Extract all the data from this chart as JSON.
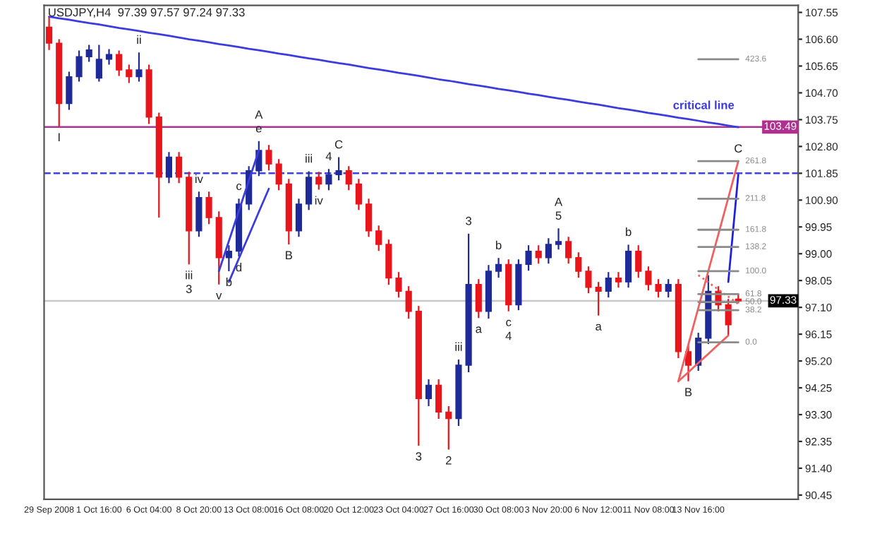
{
  "chart_data": {
    "type": "candlestick",
    "title": "USDJPY,H4  97.39 97.57 97.24 97.33",
    "categories": [
      "29 Sep 2008",
      null,
      null,
      null,
      null,
      "1 Oct 16:00",
      null,
      null,
      null,
      null,
      "6 Oct 04:00",
      null,
      null,
      null,
      null,
      "8 Oct 20:00",
      null,
      null,
      null,
      null,
      "13 Oct 08:00",
      null,
      null,
      null,
      null,
      "16 Oct 08:00",
      null,
      null,
      null,
      null,
      "20 Oct 12:00",
      null,
      null,
      null,
      null,
      "23 Oct 04:00",
      null,
      null,
      null,
      null,
      "27 Oct 16:00",
      null,
      null,
      null,
      null,
      "30 Oct 08:00",
      null,
      null,
      null,
      null,
      "3 Nov 20:00",
      null,
      null,
      null,
      null,
      "6 Nov 12:00",
      null,
      null,
      null,
      null,
      "11 Nov 08:00",
      null,
      null,
      null,
      null,
      "13 Nov 16:00",
      null,
      null,
      null,
      null
    ],
    "ohlc": [
      [
        107.03,
        107.41,
        106.22,
        106.46
      ],
      [
        106.46,
        106.6,
        103.51,
        104.32
      ],
      [
        104.32,
        105.45,
        104.1,
        105.27
      ],
      [
        105.27,
        106.2,
        105.1,
        105.98
      ],
      [
        105.98,
        106.4,
        105.8,
        106.22
      ],
      [
        105.22,
        106.4,
        105.1,
        105.89
      ],
      [
        105.89,
        106.25,
        105.7,
        106.06
      ],
      [
        106.06,
        106.2,
        105.3,
        105.51
      ],
      [
        105.51,
        105.7,
        105.05,
        105.27
      ],
      [
        105.27,
        106.13,
        105.1,
        105.51
      ],
      [
        105.51,
        105.7,
        103.6,
        103.84
      ],
      [
        103.84,
        104.0,
        100.28,
        101.71
      ],
      [
        101.71,
        102.6,
        101.5,
        102.42
      ],
      [
        102.42,
        102.6,
        101.5,
        101.71
      ],
      [
        101.71,
        101.9,
        98.62,
        99.81
      ],
      [
        99.81,
        101.2,
        99.6,
        100.99
      ],
      [
        100.99,
        101.2,
        100.05,
        100.28
      ],
      [
        100.28,
        100.5,
        97.91,
        98.86
      ],
      [
        98.86,
        99.3,
        98.38,
        99.09
      ],
      [
        99.09,
        100.95,
        98.9,
        100.76
      ],
      [
        100.76,
        102.1,
        100.55,
        101.94
      ],
      [
        101.94,
        102.99,
        101.75,
        102.66
      ],
      [
        102.66,
        102.85,
        101.95,
        102.18
      ],
      [
        102.18,
        102.35,
        101.25,
        101.47
      ],
      [
        101.47,
        101.65,
        99.33,
        99.81
      ],
      [
        99.81,
        100.95,
        99.6,
        100.76
      ],
      [
        100.76,
        101.92,
        100.55,
        101.71
      ],
      [
        101.71,
        101.9,
        101.27,
        101.47
      ],
      [
        101.47,
        102.0,
        101.25,
        101.8
      ],
      [
        101.8,
        102.42,
        101.6,
        101.94
      ],
      [
        101.94,
        102.1,
        101.25,
        101.47
      ],
      [
        101.47,
        101.65,
        100.55,
        100.76
      ],
      [
        100.76,
        100.95,
        99.6,
        99.81
      ],
      [
        99.81,
        100.0,
        99.1,
        99.33
      ],
      [
        99.33,
        99.5,
        97.9,
        98.14
      ],
      [
        98.14,
        98.35,
        97.45,
        97.67
      ],
      [
        97.67,
        97.85,
        96.7,
        96.96
      ],
      [
        96.96,
        97.15,
        92.2,
        93.87
      ],
      [
        93.87,
        94.55,
        93.6,
        94.34
      ],
      [
        94.34,
        94.55,
        93.15,
        93.39
      ],
      [
        93.39,
        93.6,
        92.06,
        93.16
      ],
      [
        93.16,
        95.25,
        92.9,
        95.05
      ],
      [
        95.05,
        99.71,
        94.8,
        97.91
      ],
      [
        97.91,
        98.1,
        96.72,
        96.96
      ],
      [
        96.96,
        98.6,
        96.7,
        98.38
      ],
      [
        98.38,
        98.85,
        98.15,
        98.62
      ],
      [
        98.62,
        98.8,
        96.96,
        97.19
      ],
      [
        97.19,
        98.8,
        97.0,
        98.62
      ],
      [
        98.62,
        99.3,
        98.4,
        99.09
      ],
      [
        99.09,
        99.3,
        98.65,
        98.86
      ],
      [
        98.86,
        99.55,
        98.65,
        99.33
      ],
      [
        99.33,
        99.9,
        99.15,
        99.43
      ],
      [
        99.43,
        99.6,
        98.65,
        98.86
      ],
      [
        98.86,
        99.05,
        98.15,
        98.38
      ],
      [
        98.38,
        98.55,
        97.6,
        97.81
      ],
      [
        97.81,
        98.0,
        96.81,
        97.67
      ],
      [
        97.67,
        98.35,
        97.45,
        98.14
      ],
      [
        98.14,
        98.35,
        97.8,
        98.0
      ],
      [
        98.0,
        99.32,
        97.8,
        99.09
      ],
      [
        99.09,
        99.3,
        98.15,
        98.38
      ],
      [
        98.38,
        98.55,
        97.7,
        97.91
      ],
      [
        97.91,
        98.1,
        97.45,
        97.67
      ],
      [
        97.67,
        98.1,
        97.45,
        97.91
      ],
      [
        97.91,
        98.1,
        95.3,
        95.53
      ],
      [
        95.53,
        95.75,
        94.48,
        95.05
      ],
      [
        95.05,
        96.2,
        94.85,
        96.01
      ],
      [
        96.01,
        98.24,
        95.8,
        97.67
      ],
      [
        97.67,
        97.85,
        96.96,
        97.19
      ],
      [
        97.19,
        97.4,
        96.1,
        96.48
      ],
      [
        97.39,
        97.57,
        97.24,
        97.33
      ]
    ],
    "colors": [
      "#e8151b",
      "#e8151b",
      "#1f2a99",
      "#1f2a99",
      "#1f2a99",
      "#1f2a99",
      "#1f2a99",
      "#e8151b",
      "#e8151b",
      "#1f2a99",
      "#e8151b",
      "#e8151b",
      "#1f2a99",
      "#e8151b",
      "#e8151b",
      "#1f2a99",
      "#e8151b",
      "#e8151b",
      "#1f2a99",
      "#1f2a99",
      "#1f2a99",
      "#1f2a99",
      "#e8151b",
      "#e8151b",
      "#e8151b",
      "#1f2a99",
      "#1f2a99",
      "#e8151b",
      "#1f2a99",
      "#1f2a99",
      "#e8151b",
      "#e8151b",
      "#e8151b",
      "#e8151b",
      "#e8151b",
      "#e8151b",
      "#e8151b",
      "#e8151b",
      "#1f2a99",
      "#e8151b",
      "#e8151b",
      "#1f2a99",
      "#1f2a99",
      "#e8151b",
      "#1f2a99",
      "#1f2a99",
      "#e8151b",
      "#1f2a99",
      "#1f2a99",
      "#e8151b",
      "#1f2a99",
      "#1f2a99",
      "#e8151b",
      "#e8151b",
      "#e8151b",
      "#e8151b",
      "#1f2a99",
      "#e8151b",
      "#1f2a99",
      "#e8151b",
      "#e8151b",
      "#e8151b",
      "#1f2a99",
      "#e8151b",
      "#e8151b",
      "#1f2a99",
      "#1f2a99",
      "#e8151b",
      "#e8151b",
      "#e8151b"
    ],
    "series": [
      {
        "type": "line",
        "name": "critical line",
        "color": "#3c3cdc",
        "values": [
          107.4,
          107.34,
          107.29,
          107.23,
          107.17,
          107.12,
          107.06,
          107.0,
          106.95,
          106.89,
          106.83,
          106.78,
          106.72,
          106.66,
          106.6,
          106.55,
          106.49,
          106.43,
          106.38,
          106.32,
          106.26,
          106.21,
          106.15,
          106.09,
          106.04,
          105.98,
          105.92,
          105.87,
          105.81,
          105.75,
          105.7,
          105.64,
          105.58,
          105.53,
          105.47,
          105.41,
          105.36,
          105.3,
          105.24,
          105.18,
          105.13,
          105.07,
          105.01,
          104.96,
          104.9,
          104.84,
          104.79,
          104.73,
          104.67,
          104.62,
          104.56,
          104.5,
          104.45,
          104.39,
          104.33,
          104.28,
          104.22,
          104.16,
          104.11,
          104.05,
          103.99,
          103.94,
          103.88,
          103.82,
          103.77,
          103.71,
          103.65,
          103.6,
          103.54,
          103.48
        ]
      },
      {
        "type": "line",
        "color": "#3c3cdc",
        "values": [
          null,
          null,
          null,
          null,
          null,
          null,
          null,
          null,
          null,
          null,
          null,
          null,
          null,
          null,
          null,
          null,
          null,
          98.38,
          99.45,
          100.52,
          101.59,
          102.66,
          null,
          null,
          null,
          null,
          null,
          null,
          null,
          null,
          null,
          null,
          null,
          null,
          null,
          null,
          null,
          null,
          null,
          null,
          null,
          null,
          null,
          null,
          null,
          null,
          null,
          null,
          null,
          null,
          null,
          null,
          null,
          null,
          null,
          null,
          null,
          null,
          null,
          null,
          null,
          null,
          null,
          null,
          null,
          null,
          null,
          null,
          null,
          null
        ]
      },
      {
        "type": "line",
        "color": "#3c3cdc",
        "values": [
          null,
          null,
          null,
          null,
          null,
          null,
          null,
          null,
          null,
          null,
          null,
          null,
          null,
          null,
          null,
          null,
          null,
          null,
          98.0,
          98.83,
          99.65,
          100.48,
          101.3,
          null,
          null,
          null,
          null,
          null,
          null,
          null,
          null,
          null,
          null,
          null,
          null,
          null,
          null,
          null,
          null,
          null,
          null,
          null,
          null,
          null,
          null,
          null,
          null,
          null,
          null,
          null,
          null,
          null,
          null,
          null,
          null,
          null,
          null,
          null,
          null,
          null,
          null,
          null,
          null,
          null,
          null,
          null,
          null,
          null,
          null,
          null
        ]
      },
      {
        "type": "line",
        "color": "#f06060",
        "values": [
          null,
          null,
          null,
          null,
          null,
          null,
          null,
          null,
          null,
          null,
          null,
          null,
          null,
          null,
          null,
          null,
          null,
          null,
          null,
          null,
          null,
          null,
          null,
          null,
          null,
          null,
          null,
          null,
          null,
          null,
          null,
          null,
          null,
          null,
          null,
          null,
          null,
          null,
          null,
          null,
          null,
          null,
          null,
          null,
          null,
          null,
          null,
          null,
          null,
          null,
          null,
          null,
          null,
          null,
          null,
          null,
          null,
          null,
          null,
          null,
          null,
          null,
          null,
          94.48,
          95.78,
          97.08,
          98.38,
          99.68,
          100.98,
          102.28
        ]
      },
      {
        "type": "line",
        "color": "#f06060",
        "values": [
          null,
          null,
          null,
          null,
          null,
          null,
          null,
          null,
          null,
          null,
          null,
          null,
          null,
          null,
          null,
          null,
          null,
          null,
          null,
          null,
          null,
          null,
          null,
          null,
          null,
          null,
          null,
          null,
          null,
          null,
          null,
          null,
          null,
          null,
          null,
          null,
          null,
          null,
          null,
          null,
          null,
          null,
          null,
          null,
          null,
          null,
          null,
          null,
          null,
          null,
          null,
          null,
          null,
          null,
          null,
          null,
          null,
          null,
          null,
          null,
          null,
          null,
          null,
          94.48,
          94.8,
          95.13,
          95.45,
          95.78,
          96.1,
          null
        ]
      },
      {
        "type": "line",
        "color": "#f06060",
        "line_style": "dotted",
        "values": [
          null,
          null,
          null,
          null,
          null,
          null,
          null,
          null,
          null,
          null,
          null,
          null,
          null,
          null,
          null,
          null,
          null,
          null,
          null,
          null,
          null,
          null,
          null,
          null,
          null,
          null,
          null,
          null,
          null,
          null,
          null,
          null,
          null,
          null,
          null,
          null,
          null,
          null,
          null,
          null,
          null,
          null,
          null,
          null,
          null,
          null,
          null,
          null,
          null,
          null,
          null,
          null,
          null,
          null,
          null,
          null,
          null,
          null,
          null,
          null,
          null,
          null,
          null,
          null,
          null,
          98.24,
          97.99,
          97.73,
          97.48,
          97.22
        ]
      },
      {
        "type": "line",
        "color": "#2020e0",
        "values": [
          null,
          null,
          null,
          null,
          null,
          null,
          null,
          null,
          null,
          null,
          null,
          null,
          null,
          null,
          null,
          null,
          null,
          null,
          null,
          null,
          null,
          null,
          null,
          null,
          null,
          null,
          null,
          null,
          null,
          null,
          null,
          null,
          null,
          null,
          null,
          null,
          null,
          null,
          null,
          null,
          null,
          null,
          null,
          null,
          null,
          null,
          null,
          null,
          null,
          null,
          null,
          null,
          null,
          null,
          null,
          null,
          null,
          null,
          null,
          null,
          null,
          null,
          null,
          null,
          null,
          null,
          null,
          null,
          98.0,
          101.8
        ]
      },
      {
        "type": "line",
        "name": "423.6",
        "color": "#8a8a8a",
        "values": [
          null,
          null,
          null,
          null,
          null,
          null,
          null,
          null,
          null,
          null,
          null,
          null,
          null,
          null,
          null,
          null,
          null,
          null,
          null,
          null,
          null,
          null,
          null,
          null,
          null,
          null,
          null,
          null,
          null,
          null,
          null,
          null,
          null,
          null,
          null,
          null,
          null,
          null,
          null,
          null,
          null,
          null,
          null,
          null,
          null,
          null,
          null,
          null,
          null,
          null,
          null,
          null,
          null,
          null,
          null,
          null,
          null,
          null,
          null,
          null,
          null,
          null,
          null,
          null,
          null,
          105.89,
          105.89,
          105.89,
          105.89,
          105.89
        ]
      },
      {
        "type": "line",
        "name": "261.8",
        "color": "#8a8a8a",
        "values": [
          null,
          null,
          null,
          null,
          null,
          null,
          null,
          null,
          null,
          null,
          null,
          null,
          null,
          null,
          null,
          null,
          null,
          null,
          null,
          null,
          null,
          null,
          null,
          null,
          null,
          null,
          null,
          null,
          null,
          null,
          null,
          null,
          null,
          null,
          null,
          null,
          null,
          null,
          null,
          null,
          null,
          null,
          null,
          null,
          null,
          null,
          null,
          null,
          null,
          null,
          null,
          null,
          null,
          null,
          null,
          null,
          null,
          null,
          null,
          null,
          null,
          null,
          null,
          null,
          null,
          102.28,
          102.28,
          102.28,
          102.28,
          102.28
        ]
      },
      {
        "type": "line",
        "name": "211.8",
        "color": "#8a8a8a",
        "values": [
          null,
          null,
          null,
          null,
          null,
          null,
          null,
          null,
          null,
          null,
          null,
          null,
          null,
          null,
          null,
          null,
          null,
          null,
          null,
          null,
          null,
          null,
          null,
          null,
          null,
          null,
          null,
          null,
          null,
          null,
          null,
          null,
          null,
          null,
          null,
          null,
          null,
          null,
          null,
          null,
          null,
          null,
          null,
          null,
          null,
          null,
          null,
          null,
          null,
          null,
          null,
          null,
          null,
          null,
          null,
          null,
          null,
          null,
          null,
          null,
          null,
          null,
          null,
          null,
          null,
          100.95,
          100.95,
          100.95,
          100.95,
          100.95
        ]
      },
      {
        "type": "line",
        "name": "161.8",
        "color": "#8a8a8a",
        "values": [
          null,
          null,
          null,
          null,
          null,
          null,
          null,
          null,
          null,
          null,
          null,
          null,
          null,
          null,
          null,
          null,
          null,
          null,
          null,
          null,
          null,
          null,
          null,
          null,
          null,
          null,
          null,
          null,
          null,
          null,
          null,
          null,
          null,
          null,
          null,
          null,
          null,
          null,
          null,
          null,
          null,
          null,
          null,
          null,
          null,
          null,
          null,
          null,
          null,
          null,
          null,
          null,
          null,
          null,
          null,
          null,
          null,
          null,
          null,
          null,
          null,
          null,
          null,
          null,
          null,
          99.85,
          99.85,
          99.85,
          99.85,
          99.85
        ]
      },
      {
        "type": "line",
        "name": "138.2",
        "color": "#8a8a8a",
        "values": [
          null,
          null,
          null,
          null,
          null,
          null,
          null,
          null,
          null,
          null,
          null,
          null,
          null,
          null,
          null,
          null,
          null,
          null,
          null,
          null,
          null,
          null,
          null,
          null,
          null,
          null,
          null,
          null,
          null,
          null,
          null,
          null,
          null,
          null,
          null,
          null,
          null,
          null,
          null,
          null,
          null,
          null,
          null,
          null,
          null,
          null,
          null,
          null,
          null,
          null,
          null,
          null,
          null,
          null,
          null,
          null,
          null,
          null,
          null,
          null,
          null,
          null,
          null,
          null,
          null,
          99.24,
          99.24,
          99.24,
          99.24,
          99.24
        ]
      },
      {
        "type": "line",
        "name": "100.0",
        "color": "#8a8a8a",
        "values": [
          null,
          null,
          null,
          null,
          null,
          null,
          null,
          null,
          null,
          null,
          null,
          null,
          null,
          null,
          null,
          null,
          null,
          null,
          null,
          null,
          null,
          null,
          null,
          null,
          null,
          null,
          null,
          null,
          null,
          null,
          null,
          null,
          null,
          null,
          null,
          null,
          null,
          null,
          null,
          null,
          null,
          null,
          null,
          null,
          null,
          null,
          null,
          null,
          null,
          null,
          null,
          null,
          null,
          null,
          null,
          null,
          null,
          null,
          null,
          null,
          null,
          null,
          null,
          null,
          null,
          98.38,
          98.38,
          98.38,
          98.38,
          98.38
        ]
      },
      {
        "type": "line",
        "name": "61.8",
        "color": "#8a8a8a",
        "values": [
          null,
          null,
          null,
          null,
          null,
          null,
          null,
          null,
          null,
          null,
          null,
          null,
          null,
          null,
          null,
          null,
          null,
          null,
          null,
          null,
          null,
          null,
          null,
          null,
          null,
          null,
          null,
          null,
          null,
          null,
          null,
          null,
          null,
          null,
          null,
          null,
          null,
          null,
          null,
          null,
          null,
          null,
          null,
          null,
          null,
          null,
          null,
          null,
          null,
          null,
          null,
          null,
          null,
          null,
          null,
          null,
          null,
          null,
          null,
          null,
          null,
          null,
          null,
          null,
          null,
          97.57,
          97.57,
          97.57,
          97.57,
          97.57
        ]
      },
      {
        "type": "line",
        "name": "50.0",
        "color": "#8a8a8a",
        "values": [
          null,
          null,
          null,
          null,
          null,
          null,
          null,
          null,
          null,
          null,
          null,
          null,
          null,
          null,
          null,
          null,
          null,
          null,
          null,
          null,
          null,
          null,
          null,
          null,
          null,
          null,
          null,
          null,
          null,
          null,
          null,
          null,
          null,
          null,
          null,
          null,
          null,
          null,
          null,
          null,
          null,
          null,
          null,
          null,
          null,
          null,
          null,
          null,
          null,
          null,
          null,
          null,
          null,
          null,
          null,
          null,
          null,
          null,
          null,
          null,
          null,
          null,
          null,
          null,
          null,
          97.29,
          97.29,
          97.29,
          97.29,
          97.29
        ]
      },
      {
        "type": "line",
        "name": "38.2",
        "color": "#8a8a8a",
        "values": [
          null,
          null,
          null,
          null,
          null,
          null,
          null,
          null,
          null,
          null,
          null,
          null,
          null,
          null,
          null,
          null,
          null,
          null,
          null,
          null,
          null,
          null,
          null,
          null,
          null,
          null,
          null,
          null,
          null,
          null,
          null,
          null,
          null,
          null,
          null,
          null,
          null,
          null,
          null,
          null,
          null,
          null,
          null,
          null,
          null,
          null,
          null,
          null,
          null,
          null,
          null,
          null,
          null,
          null,
          null,
          null,
          null,
          null,
          null,
          null,
          null,
          null,
          null,
          null,
          null,
          97.0,
          97.0,
          97.0,
          97.0,
          97.0
        ]
      },
      {
        "type": "line",
        "name": "0.0",
        "color": "#8a8a8a",
        "values": [
          null,
          null,
          null,
          null,
          null,
          null,
          null,
          null,
          null,
          null,
          null,
          null,
          null,
          null,
          null,
          null,
          null,
          null,
          null,
          null,
          null,
          null,
          null,
          null,
          null,
          null,
          null,
          null,
          null,
          null,
          null,
          null,
          null,
          null,
          null,
          null,
          null,
          null,
          null,
          null,
          null,
          null,
          null,
          null,
          null,
          null,
          null,
          null,
          null,
          null,
          null,
          null,
          null,
          null,
          null,
          null,
          null,
          null,
          null,
          null,
          null,
          null,
          null,
          null,
          null,
          95.86,
          95.86,
          95.86,
          95.86,
          95.86
        ]
      }
    ],
    "ref_lines": [
      {
        "axis": "y",
        "value": 103.49,
        "label": "103.49",
        "color": "#b0308f"
      },
      {
        "axis": "y",
        "value": 101.85,
        "color": "#4040e0",
        "line_style": "dashed"
      },
      {
        "axis": "y",
        "value": 97.33,
        "label": "97.33",
        "color": "#c8c8c8"
      }
    ],
    "annotations": [
      {
        "text": "I",
        "y": 103.51
      },
      {
        "text": "ii",
        "y": 106.13
      },
      {
        "text": "e",
        "y": 102.99
      },
      {
        "text": "A",
        "y": 102.99
      },
      {
        "text": "4",
        "y": 102.0
      },
      {
        "text": "C",
        "y": 102.42
      },
      {
        "text": "iii",
        "y": 98.62
      },
      {
        "text": "3",
        "y": 98.62
      },
      {
        "text": "v",
        "y": 97.91
      },
      {
        "text": "b",
        "y": 98.38
      },
      {
        "text": "d",
        "y": 98.9
      },
      {
        "text": "c",
        "y": 100.95
      },
      {
        "text": "iv",
        "y": 101.2
      },
      {
        "text": "B",
        "y": 99.33
      },
      {
        "text": "iii",
        "y": 101.92
      },
      {
        "text": "iv",
        "y": 101.27
      },
      {
        "text": "3",
        "y": 92.2
      },
      {
        "text": "2",
        "y": 92.06
      },
      {
        "text": "3",
        "y": 99.71
      },
      {
        "text": "iii",
        "y": 95.25
      },
      {
        "text": "a",
        "y": 96.72
      },
      {
        "text": "b",
        "y": 98.85
      },
      {
        "text": "c",
        "y": 96.96
      },
      {
        "text": "4",
        "y": 96.96
      },
      {
        "text": "5",
        "y": 99.9
      },
      {
        "text": "A",
        "y": 99.9
      },
      {
        "text": "a",
        "y": 96.81
      },
      {
        "text": "b",
        "y": 99.32
      },
      {
        "text": "B",
        "y": 94.48
      },
      {
        "text": "C",
        "y": 102.28
      }
    ],
    "ylim": [
      90.3,
      107.8
    ],
    "yticks": [
      {
        "value": 107.55,
        "label": "107.55"
      },
      {
        "value": 106.6,
        "label": "106.60"
      },
      {
        "value": 105.65,
        "label": "105.65"
      },
      {
        "value": 104.7,
        "label": "104.70"
      },
      {
        "value": 103.75,
        "label": "103.75"
      },
      {
        "value": 102.8,
        "label": "102.80"
      },
      {
        "value": 101.85,
        "label": "101.85"
      },
      {
        "value": 100.9,
        "label": "100.90"
      },
      {
        "value": 99.95,
        "label": "99.95"
      },
      {
        "value": 99.0,
        "label": "99.00"
      },
      {
        "value": 98.05,
        "label": "98.05"
      },
      {
        "value": 97.1,
        "label": "97.10"
      },
      {
        "value": 96.15,
        "label": "96.15"
      },
      {
        "value": 95.2,
        "label": "95.20"
      },
      {
        "value": 94.25,
        "label": "94.25"
      },
      {
        "value": 93.3,
        "label": "93.30"
      },
      {
        "value": 92.35,
        "label": "92.35"
      },
      {
        "value": 91.4,
        "label": "91.40"
      },
      {
        "value": 90.45,
        "label": "90.45"
      }
    ],
    "grid": false,
    "legend": false
  }
}
